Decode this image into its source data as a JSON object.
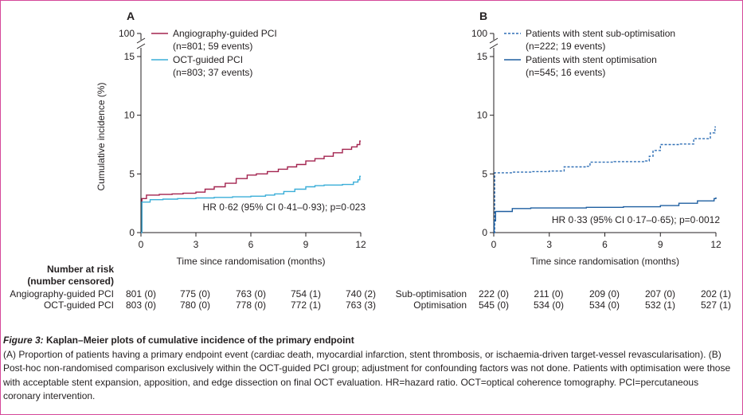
{
  "frame_color": "#d5489a",
  "chart_data": [
    {
      "type": "line",
      "panel_label": "A",
      "xlabel": "Time since randomisation (months)",
      "ylabel": "Cumulative incidence (%)",
      "x_ticks": [
        0,
        3,
        6,
        9,
        12
      ],
      "y_ticks": [
        0,
        5,
        10,
        15
      ],
      "y_break_tick": 100,
      "xlim": [
        0,
        12
      ],
      "ylim": [
        0,
        15
      ],
      "legend_position": "top-left",
      "series": [
        {
          "name": "Angiography-guided PCI",
          "name_detail": "(n=801; 59 events)",
          "color": "#a3234f",
          "dashed": false,
          "points": [
            [
              0,
              0
            ],
            [
              0.05,
              2.9
            ],
            [
              0.3,
              3.2
            ],
            [
              1.0,
              3.25
            ],
            [
              1.7,
              3.3
            ],
            [
              2.3,
              3.35
            ],
            [
              3.0,
              3.45
            ],
            [
              3.5,
              3.7
            ],
            [
              4.0,
              3.9
            ],
            [
              4.6,
              4.2
            ],
            [
              5.2,
              4.6
            ],
            [
              5.8,
              4.9
            ],
            [
              6.3,
              5.0
            ],
            [
              6.9,
              5.2
            ],
            [
              7.5,
              5.4
            ],
            [
              8.0,
              5.6
            ],
            [
              8.5,
              5.8
            ],
            [
              9.0,
              6.1
            ],
            [
              9.5,
              6.3
            ],
            [
              10.0,
              6.5
            ],
            [
              10.5,
              6.8
            ],
            [
              11.0,
              7.1
            ],
            [
              11.5,
              7.3
            ],
            [
              11.8,
              7.5
            ],
            [
              11.95,
              7.8
            ],
            [
              12.0,
              7.8
            ]
          ]
        },
        {
          "name": "OCT-guided PCI",
          "name_detail": "(n=803; 37 events)",
          "color": "#3aaed8",
          "dashed": false,
          "points": [
            [
              0,
              0
            ],
            [
              0.05,
              2.6
            ],
            [
              0.5,
              2.8
            ],
            [
              1.2,
              2.85
            ],
            [
              2.0,
              2.9
            ],
            [
              3.0,
              2.95
            ],
            [
              4.0,
              3.0
            ],
            [
              5.0,
              3.05
            ],
            [
              6.0,
              3.1
            ],
            [
              6.8,
              3.2
            ],
            [
              7.3,
              3.3
            ],
            [
              7.8,
              3.5
            ],
            [
              8.4,
              3.7
            ],
            [
              9.0,
              3.9
            ],
            [
              9.5,
              4.0
            ],
            [
              10.0,
              4.05
            ],
            [
              11.0,
              4.1
            ],
            [
              11.6,
              4.3
            ],
            [
              11.85,
              4.5
            ],
            [
              11.95,
              4.8
            ],
            [
              12.0,
              4.8
            ]
          ]
        }
      ],
      "annotation": "HR 0·62 (95% CI 0·41–0·93); p=0·023",
      "risk_table": {
        "header_line1": "Number at risk",
        "header_line2": "(number censored)",
        "rows": [
          {
            "label": "Angiography-guided PCI",
            "values": [
              "801 (0)",
              "775 (0)",
              "763 (0)",
              "754 (1)",
              "740 (2)"
            ]
          },
          {
            "label": "OCT-guided PCI",
            "values": [
              "803 (0)",
              "780 (0)",
              "778 (0)",
              "772 (1)",
              "763 (3)"
            ]
          }
        ]
      }
    },
    {
      "type": "line",
      "panel_label": "B",
      "xlabel": "Time since randomisation (months)",
      "ylabel": "",
      "x_ticks": [
        0,
        3,
        6,
        9,
        12
      ],
      "y_ticks": [
        0,
        5,
        10,
        15
      ],
      "y_break_tick": 100,
      "xlim": [
        0,
        12
      ],
      "ylim": [
        0,
        15
      ],
      "legend_position": "top-left",
      "series": [
        {
          "name": "Patients with stent sub-optimisation",
          "name_detail": "(n=222; 19 events)",
          "color": "#2f6fb5",
          "dashed": true,
          "points": [
            [
              0,
              0
            ],
            [
              0.05,
              5.1
            ],
            [
              1.0,
              5.15
            ],
            [
              2.0,
              5.2
            ],
            [
              3.0,
              5.25
            ],
            [
              3.8,
              5.6
            ],
            [
              5.0,
              5.65
            ],
            [
              5.2,
              6.0
            ],
            [
              6.5,
              6.05
            ],
            [
              8.2,
              6.1
            ],
            [
              8.4,
              6.5
            ],
            [
              8.6,
              7.0
            ],
            [
              9.0,
              7.5
            ],
            [
              10.0,
              7.55
            ],
            [
              10.8,
              8.0
            ],
            [
              11.7,
              8.5
            ],
            [
              11.95,
              9.0
            ],
            [
              12.0,
              9.0
            ]
          ]
        },
        {
          "name": "Patients with stent optimisation",
          "name_detail": "(n=545; 16 events)",
          "color": "#1f5fa0",
          "dashed": false,
          "points": [
            [
              0,
              0
            ],
            [
              0.02,
              1.0
            ],
            [
              0.1,
              1.8
            ],
            [
              1.0,
              2.05
            ],
            [
              2.0,
              2.1
            ],
            [
              3.0,
              2.1
            ],
            [
              5.0,
              2.15
            ],
            [
              7.0,
              2.2
            ],
            [
              9.0,
              2.3
            ],
            [
              10.0,
              2.5
            ],
            [
              11.0,
              2.7
            ],
            [
              11.9,
              2.9
            ],
            [
              12.0,
              3.0
            ]
          ]
        }
      ],
      "annotation": "HR 0·33 (95% CI 0·17–0·65); p=0·0012",
      "risk_table": {
        "rows": [
          {
            "label": "Sub-optimisation",
            "values": [
              "222 (0)",
              "211 (0)",
              "209 (0)",
              "207 (0)",
              "202 (1)"
            ]
          },
          {
            "label": "Optimisation",
            "values": [
              "545 (0)",
              "534 (0)",
              "534 (0)",
              "532 (1)",
              "527 (1)"
            ]
          }
        ]
      }
    }
  ],
  "caption": {
    "label": "Figure 3:",
    "title": " Kaplan–Meier plots of cumulative incidence of the primary endpoint",
    "body": "(A) Proportion of patients having a primary endpoint event (cardiac death, myocardial infarction, stent thrombosis, or ischaemia-driven target-vessel revascularisation). (B) Post-hoc non-randomised comparison exclusively within the OCT-guided PCI group; adjustment for confounding factors was not done. Patients with optimisation were those with acceptable stent expansion, apposition, and edge dissection on final OCT evaluation. HR=hazard ratio. OCT=optical coherence tomography. PCI=percutaneous coronary intervention."
  }
}
